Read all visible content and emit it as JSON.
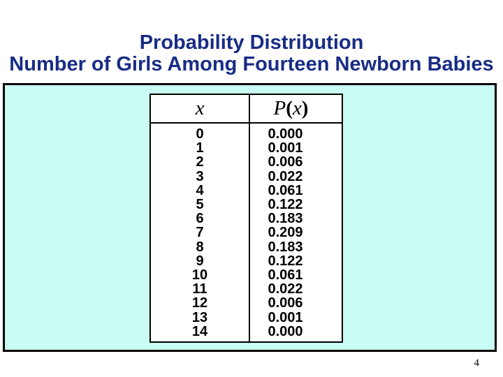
{
  "slide": {
    "title_line1": "Probability Distribution",
    "title_line2": "Number of Girls Among Fourteen Newborn Babies",
    "page_number": "4"
  },
  "colors": {
    "title_color": "#182c85",
    "panel_bg": "#c9fcf3",
    "border_color": "#000000"
  },
  "table": {
    "header_x": "x",
    "header_p_letter": "P",
    "header_p_open": "(",
    "header_p_var": "x",
    "header_p_close": ")",
    "rows": [
      {
        "x": "0",
        "p": "0.000"
      },
      {
        "x": "1",
        "p": "0.001"
      },
      {
        "x": "2",
        "p": "0.006"
      },
      {
        "x": "3",
        "p": "0.022"
      },
      {
        "x": "4",
        "p": "0.061"
      },
      {
        "x": "5",
        "p": "0.122"
      },
      {
        "x": "6",
        "p": "0.183"
      },
      {
        "x": "7",
        "p": "0.209"
      },
      {
        "x": "8",
        "p": "0.183"
      },
      {
        "x": "9",
        "p": "0.122"
      },
      {
        "x": "10",
        "p": "0.061"
      },
      {
        "x": "11",
        "p": "0.022"
      },
      {
        "x": "12",
        "p": "0.006"
      },
      {
        "x": "13",
        "p": "0.001"
      },
      {
        "x": "14",
        "p": "0.000"
      }
    ]
  }
}
